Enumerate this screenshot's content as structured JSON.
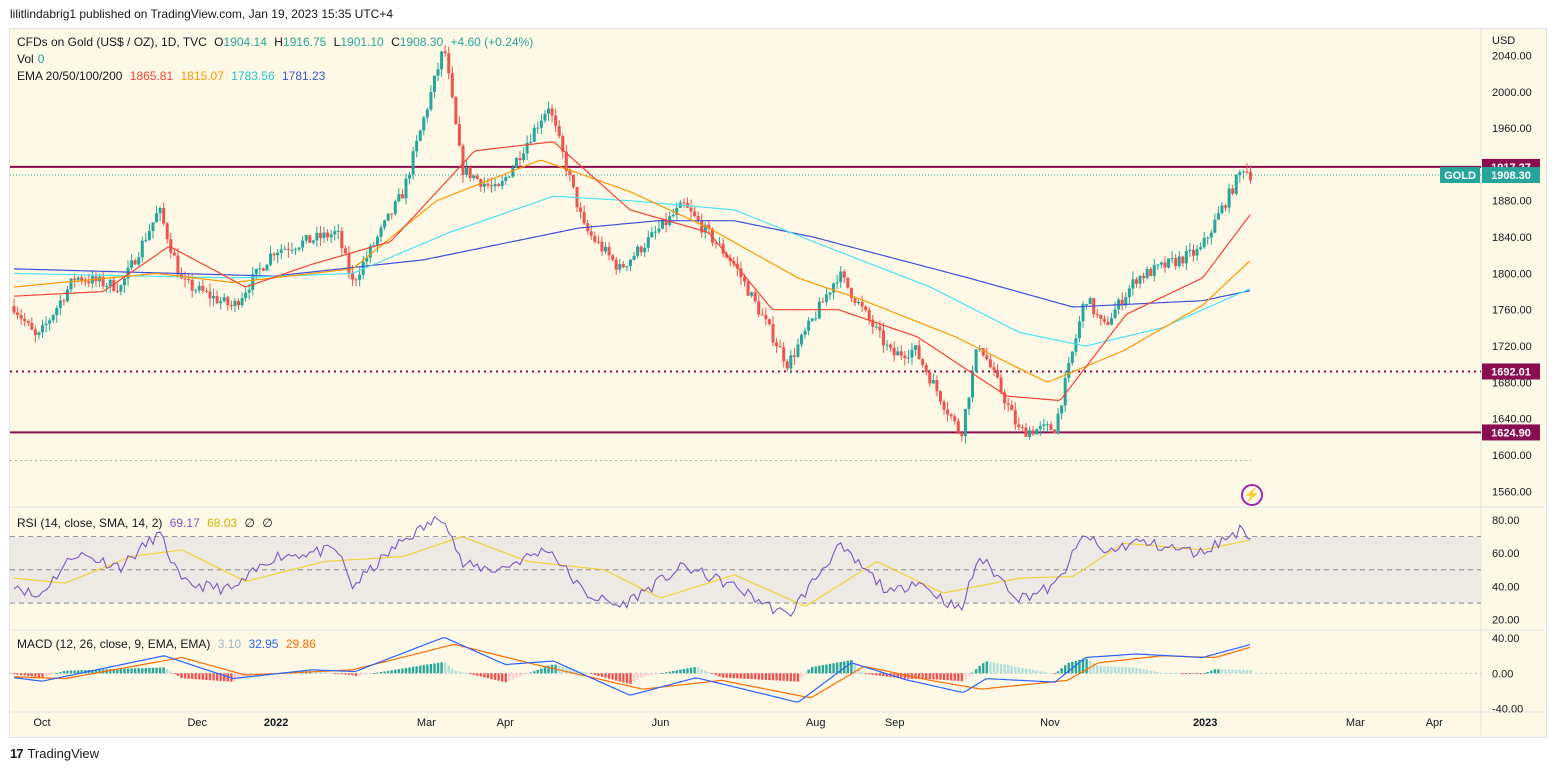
{
  "header": {
    "published": "lilitlindabrig1 published on TradingView.com, Jan 19, 2023 15:35 UTC+4"
  },
  "legend": {
    "symbol": "CFDs on Gold (US$ / OZ), 1D, TVC",
    "o_label": "O",
    "o": "1904.14",
    "h_label": "H",
    "h": "1916.75",
    "l_label": "L",
    "l": "1901.10",
    "c_label": "C",
    "c": "1908.30",
    "change": "+4.60 (+0.24%)",
    "vol_label": "Vol",
    "vol": "0",
    "ema_label": "EMA 20/50/100/200",
    "ema20": "1865.81",
    "ema50": "1815.07",
    "ema100": "1783.56",
    "ema200": "1781.23",
    "rsi_label": "RSI (14, close, SMA, 14, 2)",
    "rsi": "69.17",
    "rsi_sma": "68.03",
    "rsi_x1": "∅",
    "rsi_x2": "∅",
    "macd_label": "MACD (12, 26, close, 9, EMA, EMA)",
    "macd_hist": "3.10",
    "macd": "32.95",
    "macd_signal": "29.86"
  },
  "colors": {
    "up": "#26a69a",
    "down": "#ef5350",
    "ema20": "#f44336",
    "ema50": "#ff9800",
    "ema100": "#4de1f2",
    "ema200": "#3f51d8",
    "level": "#880e4f",
    "rsi": "#7e57c2",
    "rsi_sma": "#f1d33a",
    "macd": "#2962ff",
    "signal": "#ff6d00"
  },
  "chart_data": {
    "type": "candlestick",
    "currency": "USD",
    "symbol_tag": "GOLD",
    "price_axis": {
      "ticks": [
        "2040.00",
        "2000.00",
        "1960.00",
        "1880.00",
        "1840.00",
        "1800.00",
        "1760.00",
        "1720.00",
        "1680.00",
        "1640.00",
        "1600.00",
        "1560.00"
      ],
      "range": [
        1545,
        2068
      ]
    },
    "time_axis": {
      "labels": [
        "Oct",
        "Dec",
        "2022",
        "Mar",
        "Apr",
        "Jun",
        "Aug",
        "Sep",
        "Nov",
        "2023",
        "Mar",
        "Apr"
      ]
    },
    "levels": [
      {
        "value": 1917.27,
        "label": "1917.27",
        "style": "solid"
      },
      {
        "value": 1692.01,
        "label": "1692.01",
        "style": "dotted"
      },
      {
        "value": 1624.9,
        "label": "1624.90",
        "style": "solid"
      }
    ],
    "last_price": {
      "value": 1908.3,
      "label": "1908.30"
    },
    "price_anchors": [
      {
        "t": "2021-09-20",
        "p": 1764
      },
      {
        "t": "2021-09-29",
        "p": 1727
      },
      {
        "t": "2021-10-14",
        "p": 1796
      },
      {
        "t": "2021-11-01",
        "p": 1785
      },
      {
        "t": "2021-11-16",
        "p": 1870
      },
      {
        "t": "2021-11-25",
        "p": 1790
      },
      {
        "t": "2021-12-15",
        "p": 1763
      },
      {
        "t": "2021-12-31",
        "p": 1825
      },
      {
        "t": "2022-01-25",
        "p": 1845
      },
      {
        "t": "2022-01-31",
        "p": 1790
      },
      {
        "t": "2022-02-20",
        "p": 1890
      },
      {
        "t": "2022-03-08",
        "p": 2050
      },
      {
        "t": "2022-03-15",
        "p": 1915
      },
      {
        "t": "2022-03-29",
        "p": 1890
      },
      {
        "t": "2022-04-18",
        "p": 1985
      },
      {
        "t": "2022-05-02",
        "p": 1850
      },
      {
        "t": "2022-05-16",
        "p": 1805
      },
      {
        "t": "2022-06-10",
        "p": 1875
      },
      {
        "t": "2022-06-30",
        "p": 1810
      },
      {
        "t": "2022-07-21",
        "p": 1700
      },
      {
        "t": "2022-08-10",
        "p": 1800
      },
      {
        "t": "2022-08-31",
        "p": 1710
      },
      {
        "t": "2022-09-09",
        "p": 1716
      },
      {
        "t": "2022-09-27",
        "p": 1622
      },
      {
        "t": "2022-10-04",
        "p": 1725
      },
      {
        "t": "2022-10-20",
        "p": 1626
      },
      {
        "t": "2022-11-03",
        "p": 1630
      },
      {
        "t": "2022-11-15",
        "p": 1775
      },
      {
        "t": "2022-11-22",
        "p": 1740
      },
      {
        "t": "2022-12-05",
        "p": 1795
      },
      {
        "t": "2022-12-30",
        "p": 1825
      },
      {
        "t": "2023-01-16",
        "p": 1917
      },
      {
        "t": "2023-01-19",
        "p": 1908.3
      }
    ],
    "ema_anchors": {
      "ema20": [
        {
          "t": "2021-09-20",
          "p": 1775
        },
        {
          "t": "2021-10-25",
          "p": 1780
        },
        {
          "t": "2021-11-20",
          "p": 1830
        },
        {
          "t": "2021-12-20",
          "p": 1785
        },
        {
          "t": "2022-01-15",
          "p": 1810
        },
        {
          "t": "2022-02-15",
          "p": 1835
        },
        {
          "t": "2022-03-20",
          "p": 1935
        },
        {
          "t": "2022-04-20",
          "p": 1945
        },
        {
          "t": "2022-05-20",
          "p": 1870
        },
        {
          "t": "2022-06-20",
          "p": 1845
        },
        {
          "t": "2022-07-15",
          "p": 1760
        },
        {
          "t": "2022-08-10",
          "p": 1760
        },
        {
          "t": "2022-09-10",
          "p": 1730
        },
        {
          "t": "2022-10-15",
          "p": 1665
        },
        {
          "t": "2022-11-05",
          "p": 1660
        },
        {
          "t": "2022-12-01",
          "p": 1755
        },
        {
          "t": "2022-12-31",
          "p": 1795
        },
        {
          "t": "2023-01-19",
          "p": 1865.81
        }
      ],
      "ema50": [
        {
          "t": "2021-09-20",
          "p": 1785
        },
        {
          "t": "2021-11-15",
          "p": 1800
        },
        {
          "t": "2021-12-15",
          "p": 1790
        },
        {
          "t": "2022-01-31",
          "p": 1805
        },
        {
          "t": "2022-03-05",
          "p": 1880
        },
        {
          "t": "2022-04-15",
          "p": 1925
        },
        {
          "t": "2022-05-20",
          "p": 1890
        },
        {
          "t": "2022-06-20",
          "p": 1850
        },
        {
          "t": "2022-07-25",
          "p": 1795
        },
        {
          "t": "2022-08-20",
          "p": 1770
        },
        {
          "t": "2022-09-25",
          "p": 1730
        },
        {
          "t": "2022-10-31",
          "p": 1680
        },
        {
          "t": "2022-11-30",
          "p": 1715
        },
        {
          "t": "2022-12-31",
          "p": 1765
        },
        {
          "t": "2023-01-19",
          "p": 1815.07
        }
      ],
      "ema100": [
        {
          "t": "2021-09-20",
          "p": 1800
        },
        {
          "t": "2021-12-15",
          "p": 1795
        },
        {
          "t": "2022-01-31",
          "p": 1800
        },
        {
          "t": "2022-03-10",
          "p": 1845
        },
        {
          "t": "2022-04-20",
          "p": 1885
        },
        {
          "t": "2022-05-20",
          "p": 1880
        },
        {
          "t": "2022-06-30",
          "p": 1870
        },
        {
          "t": "2022-07-31",
          "p": 1835
        },
        {
          "t": "2022-09-15",
          "p": 1785
        },
        {
          "t": "2022-10-20",
          "p": 1735
        },
        {
          "t": "2022-11-15",
          "p": 1720
        },
        {
          "t": "2022-12-15",
          "p": 1740
        },
        {
          "t": "2023-01-19",
          "p": 1783.56
        }
      ],
      "ema200": [
        {
          "t": "2021-09-20",
          "p": 1805
        },
        {
          "t": "2021-12-31",
          "p": 1797
        },
        {
          "t": "2022-02-28",
          "p": 1815
        },
        {
          "t": "2022-04-30",
          "p": 1850
        },
        {
          "t": "2022-05-31",
          "p": 1858
        },
        {
          "t": "2022-06-30",
          "p": 1858
        },
        {
          "t": "2022-07-31",
          "p": 1840
        },
        {
          "t": "2022-09-30",
          "p": 1795
        },
        {
          "t": "2022-11-10",
          "p": 1763
        },
        {
          "t": "2022-12-31",
          "p": 1770
        },
        {
          "t": "2023-01-19",
          "p": 1781.23
        }
      ]
    },
    "rsi_axis": {
      "ticks": [
        "80.00",
        "60.00",
        "40.00",
        "20.00"
      ],
      "range": [
        15,
        86
      ],
      "band": [
        30,
        70
      ],
      "mid": 50
    },
    "rsi_anchors": [
      {
        "t": "2021-09-20",
        "p": 42
      },
      {
        "t": "2021-09-29",
        "p": 33
      },
      {
        "t": "2021-10-14",
        "p": 60
      },
      {
        "t": "2021-11-01",
        "p": 52
      },
      {
        "t": "2021-11-16",
        "p": 72
      },
      {
        "t": "2021-11-25",
        "p": 42
      },
      {
        "t": "2021-12-15",
        "p": 38
      },
      {
        "t": "2021-12-31",
        "p": 58
      },
      {
        "t": "2022-01-25",
        "p": 62
      },
      {
        "t": "2022-01-31",
        "p": 40
      },
      {
        "t": "2022-02-20",
        "p": 68
      },
      {
        "t": "2022-03-08",
        "p": 83
      },
      {
        "t": "2022-03-15",
        "p": 53
      },
      {
        "t": "2022-03-29",
        "p": 50
      },
      {
        "t": "2022-04-18",
        "p": 63
      },
      {
        "t": "2022-05-02",
        "p": 36
      },
      {
        "t": "2022-05-16",
        "p": 28
      },
      {
        "t": "2022-06-10",
        "p": 52
      },
      {
        "t": "2022-06-30",
        "p": 40
      },
      {
        "t": "2022-07-21",
        "p": 22
      },
      {
        "t": "2022-08-10",
        "p": 64
      },
      {
        "t": "2022-08-31",
        "p": 35
      },
      {
        "t": "2022-09-09",
        "p": 44
      },
      {
        "t": "2022-09-27",
        "p": 25
      },
      {
        "t": "2022-10-04",
        "p": 58
      },
      {
        "t": "2022-10-20",
        "p": 33
      },
      {
        "t": "2022-11-03",
        "p": 40
      },
      {
        "t": "2022-11-15",
        "p": 72
      },
      {
        "t": "2022-11-22",
        "p": 60
      },
      {
        "t": "2022-12-05",
        "p": 67
      },
      {
        "t": "2022-12-30",
        "p": 60
      },
      {
        "t": "2023-01-16",
        "p": 75
      },
      {
        "t": "2023-01-19",
        "p": 69.17
      }
    ],
    "rsi_sma_anchors": [
      {
        "t": "2021-09-20",
        "p": 45
      },
      {
        "t": "2021-10-10",
        "p": 42
      },
      {
        "t": "2021-11-05",
        "p": 58
      },
      {
        "t": "2021-11-25",
        "p": 62
      },
      {
        "t": "2021-12-20",
        "p": 43
      },
      {
        "t": "2022-01-20",
        "p": 55
      },
      {
        "t": "2022-02-20",
        "p": 58
      },
      {
        "t": "2022-03-15",
        "p": 70
      },
      {
        "t": "2022-04-10",
        "p": 55
      },
      {
        "t": "2022-05-10",
        "p": 50
      },
      {
        "t": "2022-06-01",
        "p": 33
      },
      {
        "t": "2022-06-30",
        "p": 47
      },
      {
        "t": "2022-07-28",
        "p": 28
      },
      {
        "t": "2022-08-25",
        "p": 55
      },
      {
        "t": "2022-09-20",
        "p": 36
      },
      {
        "t": "2022-10-20",
        "p": 45
      },
      {
        "t": "2022-11-10",
        "p": 46
      },
      {
        "t": "2022-11-30",
        "p": 66
      },
      {
        "t": "2022-12-31",
        "p": 62
      },
      {
        "t": "2023-01-19",
        "p": 68.03
      }
    ],
    "macd_axis": {
      "ticks": [
        "40.00",
        "0.00",
        "-40.00"
      ],
      "range": [
        -44,
        47
      ]
    },
    "macd_anchors": [
      {
        "t": "2021-09-20",
        "p": -5
      },
      {
        "t": "2021-10-01",
        "p": -9
      },
      {
        "t": "2021-11-18",
        "p": 20
      },
      {
        "t": "2021-12-15",
        "p": -6
      },
      {
        "t": "2022-01-15",
        "p": 4
      },
      {
        "t": "2022-02-01",
        "p": 2
      },
      {
        "t": "2022-03-08",
        "p": 41
      },
      {
        "t": "2022-04-01",
        "p": 10
      },
      {
        "t": "2022-04-20",
        "p": 14
      },
      {
        "t": "2022-05-20",
        "p": -25
      },
      {
        "t": "2022-06-15",
        "p": -5
      },
      {
        "t": "2022-07-25",
        "p": -33
      },
      {
        "t": "2022-08-15",
        "p": 12
      },
      {
        "t": "2022-09-05",
        "p": -7
      },
      {
        "t": "2022-09-28",
        "p": -22
      },
      {
        "t": "2022-10-07",
        "p": -6
      },
      {
        "t": "2022-11-03",
        "p": -10
      },
      {
        "t": "2022-11-15",
        "p": 18
      },
      {
        "t": "2022-12-05",
        "p": 22
      },
      {
        "t": "2022-12-31",
        "p": 18
      },
      {
        "t": "2023-01-19",
        "p": 32.95
      }
    ],
    "signal_anchors": [
      {
        "t": "2021-09-20",
        "p": -4
      },
      {
        "t": "2021-10-10",
        "p": -6
      },
      {
        "t": "2021-11-25",
        "p": 18
      },
      {
        "t": "2021-12-20",
        "p": -2
      },
      {
        "t": "2022-01-31",
        "p": 4
      },
      {
        "t": "2022-03-12",
        "p": 33
      },
      {
        "t": "2022-04-10",
        "p": 12
      },
      {
        "t": "2022-05-25",
        "p": -18
      },
      {
        "t": "2022-06-25",
        "p": -8
      },
      {
        "t": "2022-07-30",
        "p": -28
      },
      {
        "t": "2022-08-20",
        "p": 8
      },
      {
        "t": "2022-09-15",
        "p": -8
      },
      {
        "t": "2022-10-05",
        "p": -18
      },
      {
        "t": "2022-11-08",
        "p": -8
      },
      {
        "t": "2022-11-20",
        "p": 12
      },
      {
        "t": "2022-12-15",
        "p": 20
      },
      {
        "t": "2023-01-05",
        "p": 18
      },
      {
        "t": "2023-01-19",
        "p": 29.86
      }
    ]
  }
}
